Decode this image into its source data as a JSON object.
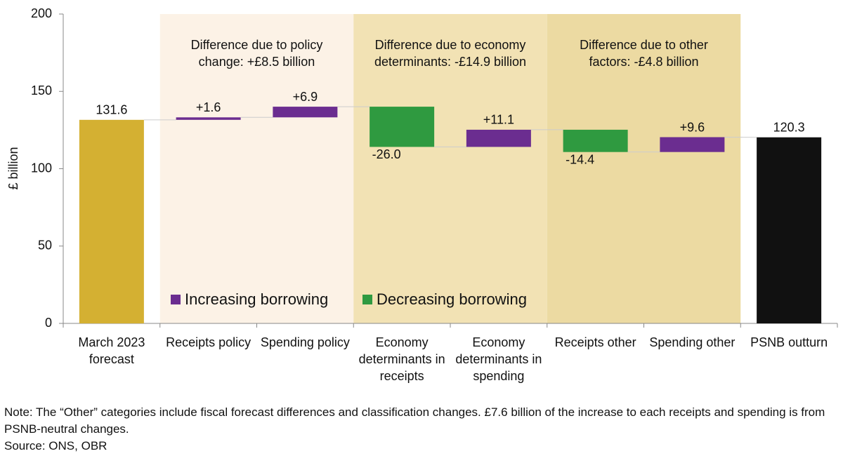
{
  "chart_data": {
    "type": "waterfall",
    "y_label": "£ billion",
    "categories": [
      "March 2023 forecast",
      "Receipts policy",
      "Spending policy",
      "Economy determinants in receipts",
      "Economy determinants in spending",
      "Receipts other",
      "Spending other",
      "PSNB outturn"
    ],
    "values": [
      131.6,
      1.6,
      6.9,
      -26.0,
      11.1,
      -14.4,
      9.6,
      120.3
    ],
    "value_labels": [
      "131.6",
      "+1.6",
      "+6.9",
      "-26.0",
      "+11.1",
      "-14.4",
      "+9.6",
      "120.3"
    ],
    "measure": [
      "absolute",
      "relative",
      "relative",
      "relative",
      "relative",
      "relative",
      "relative",
      "absolute"
    ],
    "colors": [
      "#d4b032",
      "#6b2d90",
      "#6b2d90",
      "#2f9a40",
      "#6b2d90",
      "#2f9a40",
      "#6b2d90",
      "#111111"
    ],
    "legend": [
      {
        "name": "Increasing borrowing",
        "color": "#6b2d90"
      },
      {
        "name": "Decreasing borrowing",
        "color": "#2f9a40"
      }
    ],
    "regions": [
      {
        "label": "Difference due to policy change: +£8.5 billion",
        "color": "#fcf2e6",
        "categories": [
          "Receipts policy",
          "Spending policy"
        ]
      },
      {
        "label": "Difference due to economy determinants: -£14.9 billion",
        "color": "#f2e2b4",
        "categories": [
          "Economy determinants in receipts",
          "Economy determinants in spending"
        ]
      },
      {
        "label": "Difference due to other factors: -£4.8 billion",
        "color": "#ecdaa2",
        "categories": [
          "Receipts other",
          "Spending other"
        ]
      }
    ],
    "ylim": [
      0,
      200
    ],
    "yticks": [
      0,
      50,
      100,
      150,
      200
    ],
    "grid": false
  },
  "note": "Note: The “Other” categories include fiscal forecast differences and classification changes. £7.6 billion of the increase to each receipts and spending is from PSNB-neutral changes.",
  "source": "Source: ONS, OBR"
}
